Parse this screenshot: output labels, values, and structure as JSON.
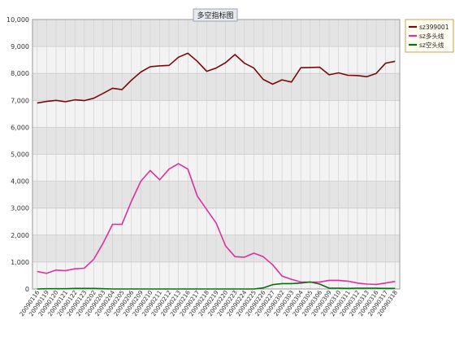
{
  "chart_data": {
    "type": "line",
    "title": "多空指标图",
    "xlabel": "",
    "ylabel": "",
    "ylim": [
      0,
      10000
    ],
    "yticks": [
      0,
      1000,
      2000,
      3000,
      4000,
      5000,
      6000,
      7000,
      8000,
      9000,
      10000
    ],
    "ytick_labels": [
      "0",
      "1,000",
      "2,000",
      "3,000",
      "4,000",
      "5,000",
      "6,000",
      "7,000",
      "8,000",
      "9,000",
      "10,000"
    ],
    "grid": true,
    "legend_position": "top-right",
    "categories": [
      "20090116",
      "20090119",
      "20090120",
      "20090121",
      "20090122",
      "20090123",
      "20090202",
      "20090203",
      "20090204",
      "20090205",
      "20090206",
      "20090209",
      "20090210",
      "20090211",
      "20090212",
      "20090213",
      "20090216",
      "20090217",
      "20090218",
      "20090219",
      "20090220",
      "20090223",
      "20090224",
      "20090225",
      "20090226",
      "20090227",
      "20090302",
      "20090303",
      "20090304",
      "20090305",
      "20090306",
      "20090309",
      "20090310",
      "20090311",
      "20090312",
      "20090313",
      "20090316",
      "20090317",
      "20090318"
    ],
    "series": [
      {
        "name": "sz399001",
        "color": "#7a0a0a",
        "values": [
          6900,
          6960,
          7000,
          6950,
          7020,
          6990,
          7080,
          7260,
          7450,
          7400,
          7750,
          8050,
          8250,
          8280,
          8300,
          8600,
          8750,
          8450,
          8080,
          8200,
          8400,
          8700,
          8380,
          8200,
          7780,
          7600,
          7760,
          7680,
          8210,
          8220,
          8230,
          7950,
          8020,
          7930,
          7920,
          7880,
          8000,
          8380,
          8450
        ]
      },
      {
        "name": "sz多头线",
        "color": "#e0309c",
        "values": [
          650,
          580,
          700,
          680,
          750,
          770,
          1100,
          1700,
          2400,
          2400,
          3250,
          4000,
          4400,
          4050,
          4450,
          4650,
          4450,
          3450,
          2950,
          2450,
          1600,
          1200,
          1180,
          1330,
          1200,
          900,
          480,
          360,
          260,
          250,
          260,
          320,
          320,
          290,
          220,
          180,
          170,
          220,
          280
        ]
      },
      {
        "name": "sz空头线",
        "color": "#0a6e12",
        "values": [
          0,
          10,
          10,
          10,
          20,
          20,
          20,
          10,
          0,
          0,
          0,
          0,
          0,
          0,
          0,
          0,
          0,
          0,
          0,
          0,
          0,
          0,
          0,
          0,
          40,
          160,
          200,
          200,
          220,
          260,
          180,
          30,
          30,
          20,
          30,
          30,
          30,
          20,
          20
        ]
      }
    ]
  }
}
